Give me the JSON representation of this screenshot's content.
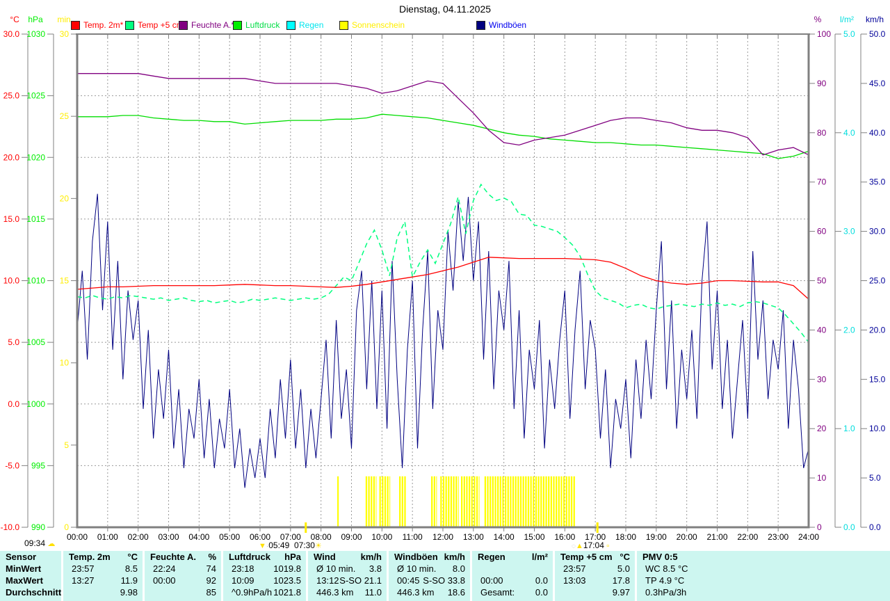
{
  "title": "Dienstag, 04.11.2025",
  "legend": [
    {
      "label": "Temp. 2m*",
      "box": "#ff0000",
      "text": "#ff0000"
    },
    {
      "label": "Temp +5 cm",
      "box": "#00ff7f",
      "text": "#ff0000"
    },
    {
      "label": "Feuchte A.*",
      "box": "#800080",
      "text": "#800080"
    },
    {
      "label": "Luftdruck",
      "box": "#00ee00",
      "text": "#00dd44"
    },
    {
      "label": "Regen",
      "box": "#00ffff",
      "text": "#00e5ee"
    },
    {
      "label": "Sonnenschein",
      "box": "#ffff00",
      "text": "#ffee00"
    },
    {
      "label": "Windböen",
      "box": "#000080",
      "text": "#0000ee"
    }
  ],
  "axes": {
    "left": [
      {
        "unit": "°C",
        "color": "#ff0000",
        "min": -10,
        "max": 30,
        "step": 5,
        "decimals": 1
      },
      {
        "unit": "hPa",
        "color": "#00ee00",
        "min": 990,
        "max": 1030,
        "step": 5,
        "decimals": 0
      },
      {
        "unit": "min",
        "color": "#ffee00",
        "min": 0,
        "max": 30,
        "step": 5,
        "decimals": 0
      }
    ],
    "right": [
      {
        "unit": "%",
        "color": "#800080",
        "min": 0,
        "max": 100,
        "step": 10,
        "decimals": 0
      },
      {
        "unit": "l/m²",
        "color": "#00dddd",
        "min": 0,
        "max": 5,
        "step": 1,
        "decimals": 1
      },
      {
        "unit": "km/h",
        "color": "#000099",
        "min": 0,
        "max": 50,
        "step": 5,
        "decimals": 1
      }
    ]
  },
  "x_axis": {
    "labels": [
      "00:00",
      "01:00",
      "02:00",
      "03:00",
      "04:00",
      "05:00",
      "06:00",
      "07:00",
      "08:00",
      "09:00",
      "10:00",
      "11:00",
      "12:00",
      "13:00",
      "14:00",
      "15:00",
      "16:00",
      "17:00",
      "18:00",
      "19:00",
      "20:00",
      "21:00",
      "22:00",
      "23:00",
      "24:00"
    ]
  },
  "markers": {
    "bottom_left_time": "09:34",
    "down_time": "05:49",
    "sunrise_time": "07:30",
    "sunset_time": "17:04",
    "sunrise_hour": 7.5,
    "sunset_hour": 17.07
  },
  "chart_data": {
    "type": "line",
    "title": "Dienstag, 04.11.2025",
    "x_unit": "hours (0-24)",
    "grid": true,
    "series": [
      {
        "name": "Temp. 2m",
        "axis": "°C",
        "color": "#ff0000",
        "x_start": 0,
        "x_step": 0.5,
        "values": [
          9.3,
          9.4,
          9.5,
          9.5,
          9.55,
          9.6,
          9.6,
          9.6,
          9.6,
          9.6,
          9.65,
          9.7,
          9.65,
          9.6,
          9.6,
          9.55,
          9.5,
          9.45,
          9.55,
          9.7,
          9.9,
          10.1,
          10.3,
          10.5,
          10.8,
          11.1,
          11.5,
          11.9,
          11.85,
          11.8,
          11.8,
          11.8,
          11.8,
          11.75,
          11.7,
          11.5,
          11.0,
          10.4,
          10.0,
          9.8,
          9.7,
          9.8,
          10.0,
          10.0,
          9.95,
          9.9,
          9.9,
          9.6,
          8.5
        ]
      },
      {
        "name": "Temp +5 cm",
        "axis": "°C",
        "color": "#00ff7f",
        "dashed": true,
        "x_start": 0,
        "x_step": 0.25,
        "values": [
          8.7,
          8.6,
          8.8,
          8.6,
          8.5,
          8.7,
          8.6,
          8.8,
          8.7,
          8.6,
          8.5,
          8.6,
          8.4,
          8.5,
          8.6,
          8.4,
          8.3,
          8.4,
          8.2,
          8.3,
          8.4,
          8.2,
          8.3,
          8.5,
          8.4,
          8.5,
          8.6,
          8.5,
          8.4,
          8.5,
          8.6,
          8.5,
          8.6,
          8.9,
          9.6,
          10.3,
          10.0,
          11.5,
          13.0,
          14.1,
          12.5,
          10.4,
          13.5,
          14.8,
          10.3,
          11.5,
          12.5,
          11.4,
          13.0,
          14.6,
          16.8,
          13.8,
          16.5,
          17.8,
          17.0,
          16.5,
          16.7,
          16.4,
          15.4,
          15.3,
          14.5,
          14.4,
          14.2,
          14.0,
          13.5,
          12.9,
          12.0,
          10.5,
          9.2,
          8.6,
          8.4,
          8.2,
          7.8,
          8.0,
          8.1,
          7.8,
          7.7,
          7.9,
          8.0,
          8.1,
          8.0,
          7.9,
          8.1,
          8.0,
          8.2,
          8.0,
          8.1,
          7.9,
          8.2,
          8.3,
          8.2,
          8.0,
          7.8,
          7.2,
          6.5,
          5.8,
          5.0
        ]
      },
      {
        "name": "Feuchte A.",
        "axis": "%",
        "color": "#800080",
        "x_start": 0,
        "x_step": 0.5,
        "values": [
          92,
          92,
          92,
          92,
          92,
          91.5,
          91,
          91,
          91,
          91,
          91,
          91,
          90.5,
          90,
          90,
          90,
          90,
          90,
          89.5,
          89,
          88,
          88.5,
          89.5,
          90.5,
          90,
          87,
          84,
          80.5,
          78,
          77.5,
          78.5,
          79,
          79.5,
          80.5,
          81.5,
          82.5,
          83,
          83,
          82.5,
          82,
          81,
          80.5,
          80.5,
          80,
          79,
          75.5,
          76.5,
          77,
          75.5
        ]
      },
      {
        "name": "Luftdruck",
        "axis": "hPa",
        "color": "#00dd00",
        "x_start": 0,
        "x_step": 0.5,
        "values": [
          1023.3,
          1023.3,
          1023.3,
          1023.4,
          1023.4,
          1023.2,
          1023.1,
          1023.0,
          1023.0,
          1022.9,
          1022.9,
          1022.7,
          1022.8,
          1022.9,
          1023.0,
          1023.0,
          1023.0,
          1023.1,
          1023.1,
          1023.2,
          1023.5,
          1023.4,
          1023.3,
          1023.2,
          1023.0,
          1022.8,
          1022.6,
          1022.3,
          1022.0,
          1021.8,
          1021.7,
          1021.5,
          1021.4,
          1021.3,
          1021.2,
          1021.2,
          1021.1,
          1021.0,
          1021.0,
          1020.9,
          1020.8,
          1020.7,
          1020.6,
          1020.5,
          1020.4,
          1020.3,
          1019.9,
          1020.1,
          1020.5
        ]
      },
      {
        "name": "Regen",
        "axis": "l/m²",
        "color": "#00ffff",
        "x_start": 0,
        "x_step": 1,
        "values": [
          0,
          0,
          0,
          0,
          0,
          0,
          0,
          0,
          0,
          0,
          0,
          0,
          0,
          0,
          0,
          0,
          0,
          0,
          0,
          0,
          0,
          0,
          0,
          0,
          0
        ]
      },
      {
        "name": "Windböen",
        "axis": "km/h",
        "color": "#000080",
        "x_start": 0,
        "x_step": 0.16667,
        "values": [
          20,
          26,
          17,
          29,
          33.8,
          22,
          31,
          18,
          27,
          15,
          24,
          19,
          23,
          12,
          20,
          9,
          16,
          11,
          18,
          8,
          14,
          6,
          12,
          9,
          15,
          7,
          13,
          6,
          11,
          8,
          14,
          6,
          10,
          4,
          8,
          5,
          9,
          5,
          12,
          7,
          15,
          9,
          17,
          8,
          14,
          6,
          12,
          7,
          13,
          19,
          9,
          21,
          11,
          16,
          8,
          22,
          26,
          14,
          25,
          12,
          24,
          10,
          27,
          15,
          6,
          18,
          25,
          8,
          20,
          28,
          12,
          22,
          18,
          30,
          24,
          33,
          27,
          33.5,
          25,
          31,
          17,
          28,
          14,
          24,
          20,
          27,
          12,
          22,
          9,
          18,
          14,
          21,
          8,
          17,
          12,
          19,
          24,
          11,
          20,
          26,
          14,
          21,
          18,
          9,
          16,
          6,
          13,
          10,
          15,
          7,
          17,
          11,
          19,
          13,
          22,
          29,
          14,
          23,
          10,
          18,
          13,
          20,
          11,
          25,
          31,
          16,
          24,
          12,
          19,
          9,
          15,
          21,
          11,
          28,
          17,
          23,
          13,
          19,
          16,
          22,
          10,
          19,
          14,
          6,
          8
        ]
      }
    ],
    "sunshine": {
      "name": "Sonnenschein",
      "axis": "min",
      "color": "#ffff00",
      "type": "bar",
      "value_minutes": 3.1,
      "intervals": [
        [
          8.52,
          8.6
        ],
        [
          9.45,
          9.8
        ],
        [
          9.9,
          10.25
        ],
        [
          10.55,
          10.8
        ],
        [
          11.6,
          11.8
        ],
        [
          11.9,
          12.5
        ],
        [
          12.58,
          13.2
        ],
        [
          13.35,
          16.35
        ]
      ]
    }
  },
  "table": {
    "row_labels": [
      "Sensor",
      "MinWert",
      "MaxWert",
      "Durchschnitt"
    ],
    "columns": [
      {
        "name": "Temp. 2m",
        "unit": "°C",
        "rows": [
          [
            "23:57",
            "8.5"
          ],
          [
            "13:27",
            "11.9"
          ],
          [
            "",
            "9.98"
          ]
        ]
      },
      {
        "name": "Feuchte A.",
        "unit": "%",
        "rows": [
          [
            "22:24",
            "74"
          ],
          [
            "00:00",
            "92"
          ],
          [
            "",
            "85"
          ]
        ]
      },
      {
        "name": "Luftdruck",
        "unit": "hPa",
        "rows": [
          [
            "23:18",
            "1019.8"
          ],
          [
            "10:09",
            "1023.5"
          ],
          [
            "^0.9hPa/h",
            "1021.8"
          ]
        ]
      },
      {
        "name": "Wind",
        "unit": "km/h",
        "rows": [
          [
            "Ø 10 min.",
            "3.8"
          ],
          [
            "13:12",
            "S-SO 21.1"
          ],
          [
            "446.3 km",
            "11.0"
          ]
        ]
      },
      {
        "name": "Windböen",
        "unit": "km/h",
        "rows": [
          [
            "Ø 10 min.",
            "8.0"
          ],
          [
            "00:45",
            "S-SO 33.8"
          ],
          [
            "446.3 km",
            "18.6"
          ]
        ]
      },
      {
        "name": "Regen",
        "unit": "l/m²",
        "rows": [
          [
            "",
            ""
          ],
          [
            "00:00",
            "0.0"
          ],
          [
            "Gesamt:",
            "0.0"
          ]
        ]
      },
      {
        "name": "Temp +5 cm",
        "unit": "°C",
        "rows": [
          [
            "23:57",
            "5.0"
          ],
          [
            "13:03",
            "17.8"
          ],
          [
            "",
            "9.97"
          ]
        ]
      },
      {
        "name": "PMV 0:5",
        "unit": "",
        "rows": [
          [
            "WC 8.5 °C",
            ""
          ],
          [
            "TP 4.9 °C",
            ""
          ],
          [
            "0.3hPa/3h",
            ""
          ]
        ]
      }
    ]
  }
}
